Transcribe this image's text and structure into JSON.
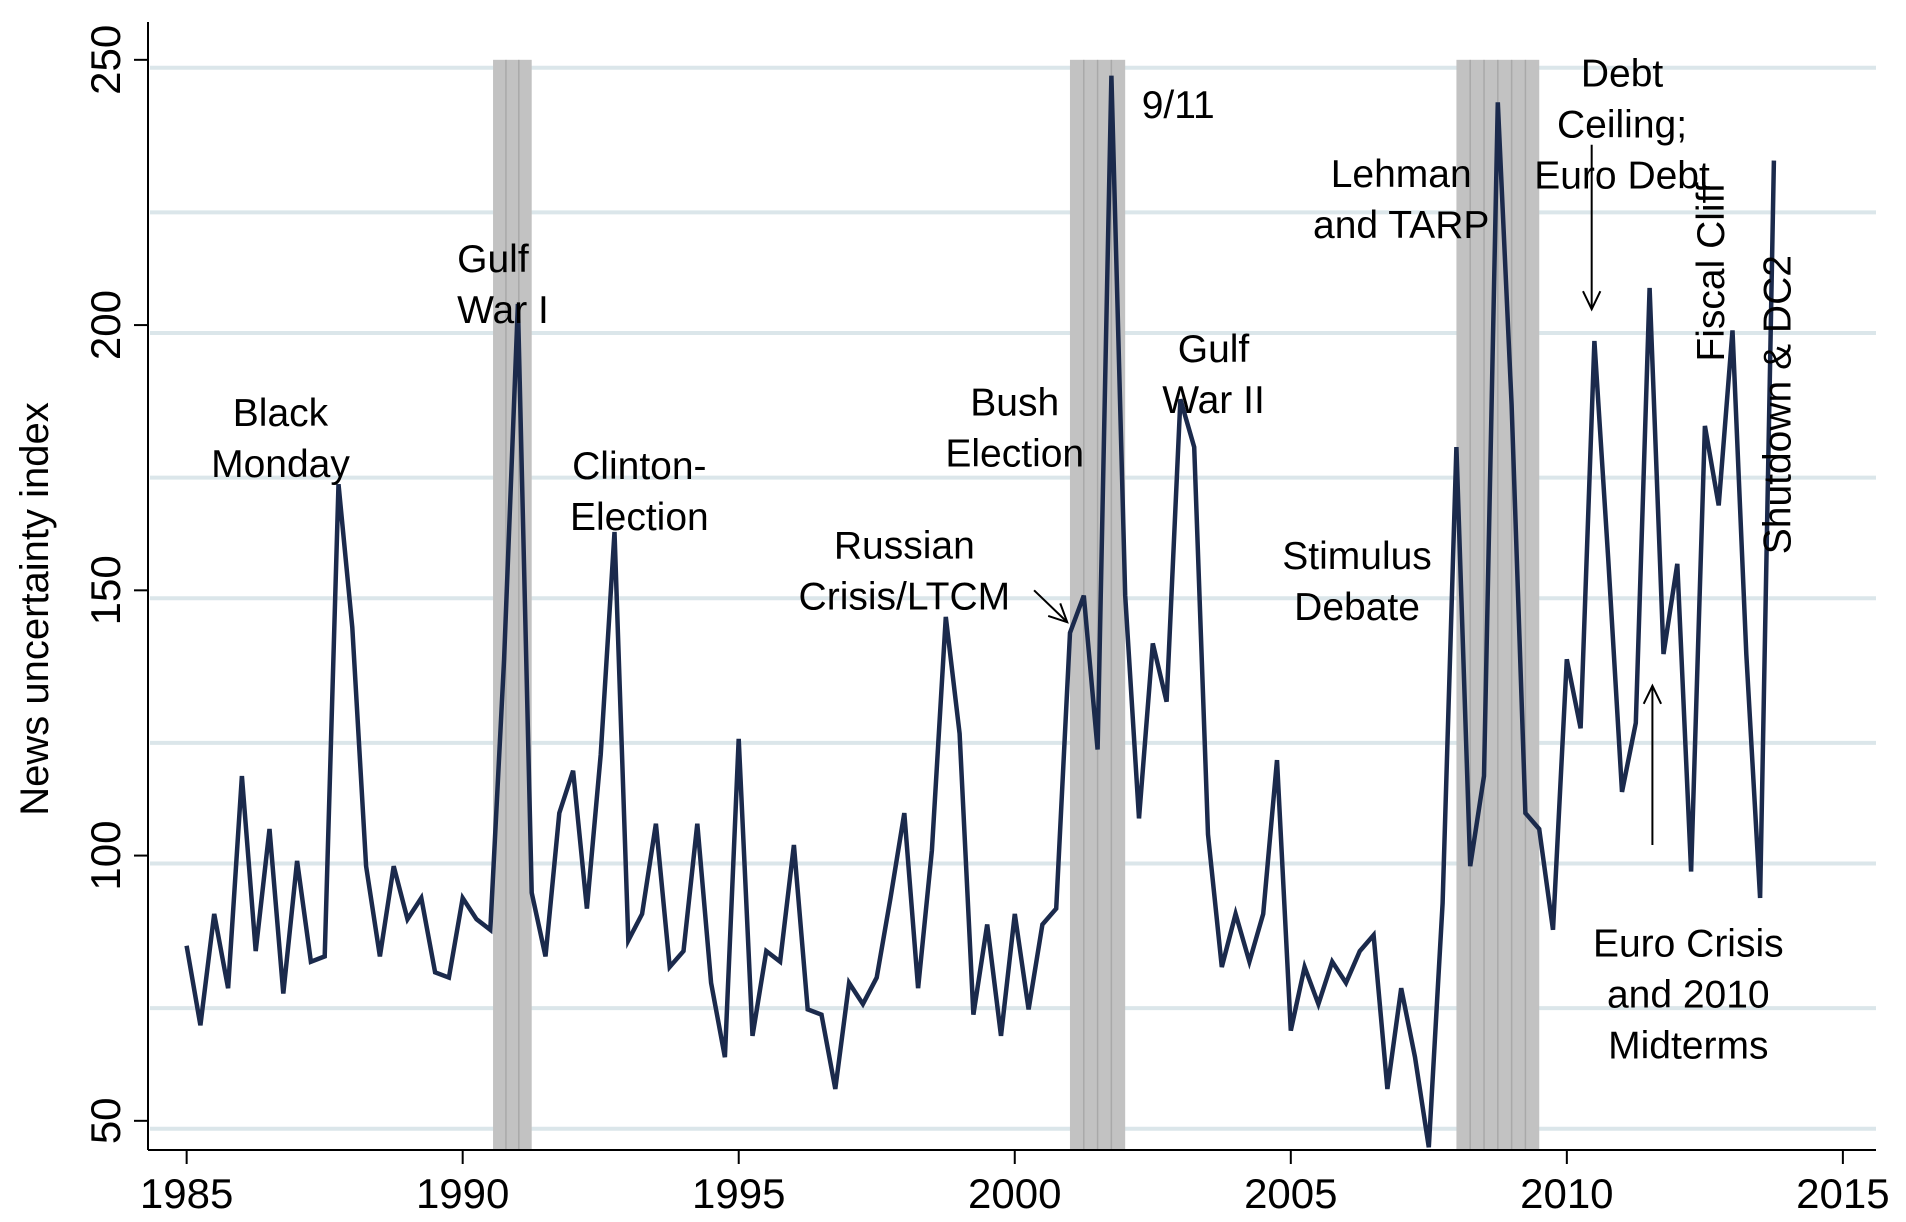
{
  "chart_data": {
    "type": "line",
    "title": "",
    "xlabel": "",
    "ylabel": "News uncertainty index",
    "xlim": [
      1984.3,
      2015.6
    ],
    "ylim": [
      44.5,
      256
    ],
    "x_ticks": [
      1985,
      1990,
      1995,
      2000,
      2005,
      2010,
      2015
    ],
    "y_ticks": [
      50,
      100,
      150,
      200,
      250
    ],
    "grid": true,
    "legend": "none",
    "colors": {
      "line": "#1b2a4c",
      "recession": "#c2c2c2",
      "grid": "#dbe6ea"
    },
    "recessions": [
      {
        "start": 1990.55,
        "end": 1991.25
      },
      {
        "start": 2001.0,
        "end": 2002.0
      },
      {
        "start": 2008.0,
        "end": 2009.5
      }
    ],
    "series": [
      {
        "values": [
          [
            1985.0,
            83
          ],
          [
            1985.25,
            68
          ],
          [
            1985.5,
            89
          ],
          [
            1985.75,
            75
          ],
          [
            1986.0,
            115
          ],
          [
            1986.25,
            82
          ],
          [
            1986.5,
            105
          ],
          [
            1986.75,
            74
          ],
          [
            1987.0,
            99
          ],
          [
            1987.25,
            80
          ],
          [
            1987.5,
            81
          ],
          [
            1987.75,
            170
          ],
          [
            1988.0,
            143
          ],
          [
            1988.25,
            98
          ],
          [
            1988.5,
            81
          ],
          [
            1988.75,
            98
          ],
          [
            1989.0,
            88
          ],
          [
            1989.25,
            92
          ],
          [
            1989.5,
            78
          ],
          [
            1989.75,
            77
          ],
          [
            1990.0,
            92
          ],
          [
            1990.25,
            88
          ],
          [
            1990.5,
            86
          ],
          [
            1990.75,
            137
          ],
          [
            1991.0,
            204
          ],
          [
            1991.25,
            93
          ],
          [
            1991.5,
            81
          ],
          [
            1991.75,
            108
          ],
          [
            1992.0,
            116
          ],
          [
            1992.25,
            90
          ],
          [
            1992.5,
            119
          ],
          [
            1992.75,
            161
          ],
          [
            1993.0,
            84
          ],
          [
            1993.25,
            89
          ],
          [
            1993.5,
            106
          ],
          [
            1993.75,
            79
          ],
          [
            1994.0,
            82
          ],
          [
            1994.25,
            106
          ],
          [
            1994.5,
            76
          ],
          [
            1994.75,
            62
          ],
          [
            1995.0,
            122
          ],
          [
            1995.25,
            66
          ],
          [
            1995.5,
            82
          ],
          [
            1995.75,
            80
          ],
          [
            1996.0,
            102
          ],
          [
            1996.25,
            71
          ],
          [
            1996.5,
            70
          ],
          [
            1996.75,
            56
          ],
          [
            1997.0,
            76
          ],
          [
            1997.25,
            72
          ],
          [
            1997.5,
            77
          ],
          [
            1997.75,
            92
          ],
          [
            1998.0,
            108
          ],
          [
            1998.25,
            75
          ],
          [
            1998.5,
            101
          ],
          [
            1998.75,
            145
          ],
          [
            1999.0,
            123
          ],
          [
            1999.25,
            70
          ],
          [
            1999.5,
            87
          ],
          [
            1999.75,
            66
          ],
          [
            2000.0,
            89
          ],
          [
            2000.25,
            71
          ],
          [
            2000.5,
            87
          ],
          [
            2000.75,
            90
          ],
          [
            2001.0,
            142
          ],
          [
            2001.25,
            149
          ],
          [
            2001.5,
            120
          ],
          [
            2001.75,
            247
          ],
          [
            2002.0,
            149
          ],
          [
            2002.25,
            107
          ],
          [
            2002.5,
            140
          ],
          [
            2002.75,
            129
          ],
          [
            2003.0,
            186
          ],
          [
            2003.25,
            177
          ],
          [
            2003.5,
            104
          ],
          [
            2003.75,
            79
          ],
          [
            2004.0,
            89
          ],
          [
            2004.25,
            80
          ],
          [
            2004.5,
            89
          ],
          [
            2004.75,
            118
          ],
          [
            2005.0,
            67
          ],
          [
            2005.25,
            79
          ],
          [
            2005.5,
            72
          ],
          [
            2005.75,
            80
          ],
          [
            2006.0,
            76
          ],
          [
            2006.25,
            82
          ],
          [
            2006.5,
            85
          ],
          [
            2006.75,
            56
          ],
          [
            2007.0,
            75
          ],
          [
            2007.25,
            62
          ],
          [
            2007.5,
            45
          ],
          [
            2007.75,
            91
          ],
          [
            2008.0,
            177
          ],
          [
            2008.25,
            98
          ],
          [
            2008.5,
            115
          ],
          [
            2008.75,
            242
          ],
          [
            2009.0,
            185
          ],
          [
            2009.25,
            108
          ],
          [
            2009.5,
            105
          ],
          [
            2009.75,
            86
          ],
          [
            2010.0,
            137
          ],
          [
            2010.25,
            124
          ],
          [
            2010.5,
            197
          ],
          [
            2010.75,
            156
          ],
          [
            2011.0,
            112
          ],
          [
            2011.25,
            125
          ],
          [
            2011.5,
            207
          ],
          [
            2011.75,
            138
          ],
          [
            2012.0,
            155
          ],
          [
            2012.25,
            97
          ],
          [
            2012.5,
            181
          ],
          [
            2012.75,
            166
          ],
          [
            2013.0,
            199
          ],
          [
            2013.25,
            138
          ],
          [
            2013.5,
            92
          ],
          [
            2013.75,
            231
          ]
        ]
      }
    ],
    "annotations": [
      {
        "lines": [
          "Black",
          "Monday"
        ],
        "x": 1986.7,
        "y": 181,
        "anchor": "middle"
      },
      {
        "lines": [
          "Gulf",
          "War I"
        ],
        "x": 1989.9,
        "y": 210,
        "anchor": "start"
      },
      {
        "lines": [
          "Clinton-",
          "Election"
        ],
        "x": 1993.2,
        "y": 171,
        "anchor": "middle"
      },
      {
        "lines": [
          "Russian",
          "Crisis/LTCM"
        ],
        "x": 1998.0,
        "y": 156,
        "anchor": "middle"
      },
      {
        "lines": [
          "Bush",
          "Election"
        ],
        "x": 2000.0,
        "y": 183,
        "anchor": "middle"
      },
      {
        "lines": [
          "9/11"
        ],
        "x": 2002.3,
        "y": 239,
        "anchor": "start"
      },
      {
        "lines": [
          "Gulf",
          "War II"
        ],
        "x": 2003.6,
        "y": 193,
        "anchor": "middle"
      },
      {
        "lines": [
          "Lehman",
          "and TARP"
        ],
        "x": 2007.0,
        "y": 226,
        "anchor": "middle"
      },
      {
        "lines": [
          "Stimulus",
          "Debate"
        ],
        "x": 2006.2,
        "y": 154,
        "anchor": "middle"
      },
      {
        "lines": [
          "Debt",
          "Ceiling;",
          "Euro Debt"
        ],
        "x": 2011.0,
        "y": 245,
        "anchor": "middle"
      },
      {
        "lines": [
          "Euro Crisis",
          "and 2010",
          "Midterms"
        ],
        "x": 2012.2,
        "y": 81,
        "anchor": "middle"
      }
    ],
    "vertical_annotations": [
      {
        "text": "Fiscal Cliff",
        "x": 2012.85,
        "y": 210
      },
      {
        "text": "Shutdown & DC2",
        "x": 2014.05,
        "y": 185
      }
    ],
    "arrows": [
      {
        "from": [
          2000.35,
          150
        ],
        "to": [
          2000.95,
          144
        ]
      },
      {
        "from": [
          2010.45,
          234
        ],
        "to": [
          2010.45,
          203
        ]
      },
      {
        "from": [
          2011.55,
          102
        ],
        "to": [
          2011.55,
          132
        ]
      }
    ]
  }
}
